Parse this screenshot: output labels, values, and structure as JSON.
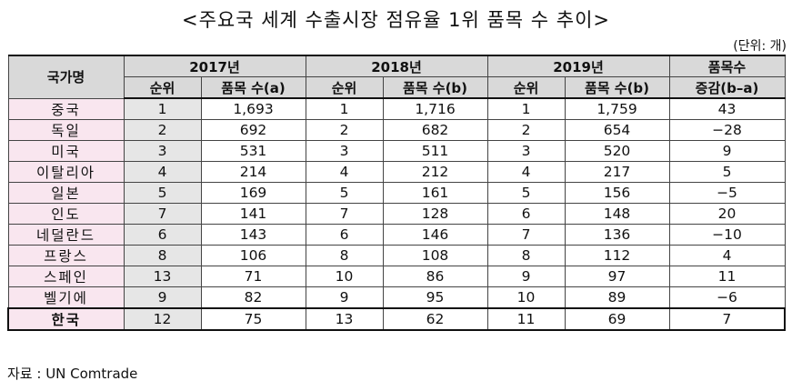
{
  "title": "<주요국 세계 수출시장 점유율 1위 품목 수 추이>",
  "unit": "(단위: 개)",
  "headers": {
    "country": "국가명",
    "y2017": "2017년",
    "y2018": "2018년",
    "y2019": "2019년",
    "change_top": "품목수",
    "change_bottom": "증감(b–a)",
    "rank": "순위",
    "count_a": "품목 수(a)",
    "count_b": "품목 수(b)"
  },
  "rows": [
    {
      "country": "중국",
      "r17": "1",
      "c17": "1,693",
      "r18": "1",
      "c18": "1,716",
      "r19": "1",
      "c19": "1,759",
      "chg": "43"
    },
    {
      "country": "독일",
      "r17": "2",
      "c17": "692",
      "r18": "2",
      "c18": "682",
      "r19": "2",
      "c19": "654",
      "chg": "−28"
    },
    {
      "country": "미국",
      "r17": "3",
      "c17": "531",
      "r18": "3",
      "c18": "511",
      "r19": "3",
      "c19": "520",
      "chg": "9"
    },
    {
      "country": "이탈리아",
      "r17": "4",
      "c17": "214",
      "r18": "4",
      "c18": "212",
      "r19": "4",
      "c19": "217",
      "chg": "5"
    },
    {
      "country": "일본",
      "r17": "5",
      "c17": "169",
      "r18": "5",
      "c18": "161",
      "r19": "5",
      "c19": "156",
      "chg": "−5"
    },
    {
      "country": "인도",
      "r17": "7",
      "c17": "141",
      "r18": "7",
      "c18": "128",
      "r19": "6",
      "c19": "148",
      "chg": "20"
    },
    {
      "country": "네덜란드",
      "r17": "6",
      "c17": "143",
      "r18": "6",
      "c18": "146",
      "r19": "7",
      "c19": "136",
      "chg": "−10"
    },
    {
      "country": "프랑스",
      "r17": "8",
      "c17": "106",
      "r18": "8",
      "c18": "108",
      "r19": "8",
      "c19": "112",
      "chg": "4"
    },
    {
      "country": "스페인",
      "r17": "13",
      "c17": "71",
      "r18": "10",
      "c18": "86",
      "r19": "9",
      "c19": "97",
      "chg": "11"
    },
    {
      "country": "벨기에",
      "r17": "9",
      "c17": "82",
      "r18": "9",
      "c18": "95",
      "r19": "10",
      "c19": "89",
      "chg": "−6"
    },
    {
      "country": "한국",
      "r17": "12",
      "c17": "75",
      "r18": "13",
      "c18": "62",
      "r19": "11",
      "c19": "69",
      "chg": "7"
    }
  ],
  "source": "자료 : UN Comtrade"
}
